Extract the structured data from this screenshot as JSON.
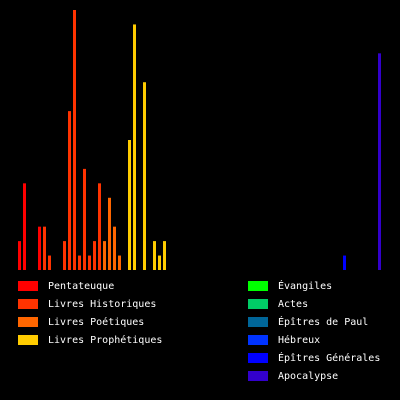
{
  "chart_data": {
    "type": "bar",
    "ylim": [
      0,
      18
    ],
    "series": [
      {
        "name": "Pentateuque",
        "color": "#ff0000",
        "values": [
          2,
          6,
          0,
          0,
          3,
          null,
          null,
          null,
          null,
          null,
          null,
          null,
          null,
          null,
          null,
          null,
          null,
          null,
          null,
          null,
          null,
          null,
          null,
          null,
          null,
          null,
          null,
          null,
          null,
          null,
          null,
          null,
          null,
          null,
          null,
          null,
          null,
          null,
          null,
          null,
          null,
          null,
          null,
          null,
          null,
          null,
          null,
          null,
          null,
          null,
          null,
          null,
          null,
          null,
          null,
          null,
          null,
          null,
          null,
          null,
          null,
          null,
          null,
          null,
          null,
          null,
          null,
          null,
          null,
          null,
          null,
          null,
          null
        ]
      },
      {
        "name": "Livres Historiques",
        "color": "#ff3300",
        "values": [
          null,
          null,
          null,
          null,
          null,
          3,
          1,
          0,
          0,
          2,
          11,
          18,
          1,
          7,
          1,
          2,
          6,
          null,
          null,
          null,
          null,
          null,
          null,
          null,
          null,
          null,
          null,
          null,
          null,
          null,
          null,
          null,
          null,
          null,
          null,
          null,
          null,
          null,
          null,
          null,
          null,
          null,
          null,
          null,
          null,
          null,
          null,
          null,
          null,
          null,
          null,
          null,
          null,
          null,
          null,
          null,
          null,
          null,
          null,
          null,
          null,
          null,
          null,
          null,
          null,
          null,
          null,
          null,
          null,
          null,
          null,
          null,
          null
        ]
      },
      {
        "name": "Livres Poétiques",
        "color": "#ff6600",
        "values": [
          null,
          null,
          null,
          null,
          null,
          null,
          null,
          null,
          null,
          null,
          null,
          null,
          null,
          null,
          null,
          null,
          null,
          2,
          5,
          3,
          1,
          0,
          null,
          null,
          null,
          null,
          null,
          null,
          null,
          null,
          null,
          null,
          null,
          null,
          null,
          null,
          null,
          null,
          null,
          null,
          null,
          null,
          null,
          null,
          null,
          null,
          null,
          null,
          null,
          null,
          null,
          null,
          null,
          null,
          null,
          null,
          null,
          null,
          null,
          null,
          null,
          null,
          null,
          null,
          null,
          null,
          null,
          null,
          null,
          null,
          null,
          null,
          null
        ]
      },
      {
        "name": "Livres Prophétiques",
        "color": "#ffcc00",
        "values": [
          null,
          null,
          null,
          null,
          null,
          null,
          null,
          null,
          null,
          null,
          null,
          null,
          null,
          null,
          null,
          null,
          null,
          null,
          null,
          null,
          null,
          null,
          9,
          17,
          0,
          13,
          0,
          2,
          1,
          2,
          0,
          0,
          0,
          0,
          0,
          0,
          0,
          0,
          0,
          0,
          0,
          0,
          0,
          0,
          0,
          0,
          null,
          null,
          null,
          null,
          null,
          null,
          null,
          null,
          null,
          null,
          null,
          null,
          null,
          null,
          null,
          null,
          null,
          null,
          null,
          null,
          null,
          null,
          null,
          null,
          null,
          null,
          null
        ]
      },
      {
        "name": "Évangiles",
        "color": "#00ff00",
        "values": [
          null,
          null,
          null,
          null,
          null,
          null,
          null,
          null,
          null,
          null,
          null,
          null,
          null,
          null,
          null,
          null,
          null,
          null,
          null,
          null,
          null,
          null,
          null,
          null,
          null,
          null,
          null,
          null,
          null,
          null,
          null,
          null,
          null,
          null,
          null,
          null,
          null,
          null,
          null,
          null,
          null,
          null,
          null,
          null,
          null,
          null,
          0,
          0,
          0,
          0,
          null,
          null,
          null,
          null,
          null,
          null,
          null,
          null,
          null,
          null,
          null,
          null,
          null,
          null,
          null,
          null,
          null,
          null,
          null,
          null,
          null,
          null,
          null
        ]
      },
      {
        "name": "Actes",
        "color": "#00cc66",
        "values": [
          null,
          null,
          null,
          null,
          null,
          null,
          null,
          null,
          null,
          null,
          null,
          null,
          null,
          null,
          null,
          null,
          null,
          null,
          null,
          null,
          null,
          null,
          null,
          null,
          null,
          null,
          null,
          null,
          null,
          null,
          null,
          null,
          null,
          null,
          null,
          null,
          null,
          null,
          null,
          null,
          null,
          null,
          null,
          null,
          null,
          null,
          null,
          null,
          null,
          null,
          0,
          null,
          null,
          null,
          null,
          null,
          null,
          null,
          null,
          null,
          null,
          null,
          null,
          null,
          null,
          null,
          null,
          null,
          null,
          null,
          null,
          null,
          null
        ]
      },
      {
        "name": "Épîtres de Paul",
        "color": "#006699",
        "values": [
          null,
          null,
          null,
          null,
          null,
          null,
          null,
          null,
          null,
          null,
          null,
          null,
          null,
          null,
          null,
          null,
          null,
          null,
          null,
          null,
          null,
          null,
          null,
          null,
          null,
          null,
          null,
          null,
          null,
          null,
          null,
          null,
          null,
          null,
          null,
          null,
          null,
          null,
          null,
          null,
          null,
          null,
          null,
          null,
          null,
          null,
          null,
          null,
          null,
          null,
          null,
          0,
          0,
          0,
          0,
          0,
          0,
          0,
          0,
          0,
          0,
          0,
          0,
          0,
          null,
          null,
          null,
          null,
          null,
          null,
          null,
          null,
          null
        ]
      },
      {
        "name": "Hébreux",
        "color": "#0033ff",
        "values": [
          null,
          null,
          null,
          null,
          null,
          null,
          null,
          null,
          null,
          null,
          null,
          null,
          null,
          null,
          null,
          null,
          null,
          null,
          null,
          null,
          null,
          null,
          null,
          null,
          null,
          null,
          null,
          null,
          null,
          null,
          null,
          null,
          null,
          null,
          null,
          null,
          null,
          null,
          null,
          null,
          null,
          null,
          null,
          null,
          null,
          null,
          null,
          null,
          null,
          null,
          null,
          null,
          null,
          null,
          null,
          null,
          null,
          null,
          null,
          null,
          null,
          null,
          null,
          null,
          0,
          null,
          null,
          null,
          null,
          null,
          null,
          null,
          null
        ]
      },
      {
        "name": "Épîtres Générales",
        "color": "#0000ff",
        "values": [
          null,
          null,
          null,
          null,
          null,
          null,
          null,
          null,
          null,
          null,
          null,
          null,
          null,
          null,
          null,
          null,
          null,
          null,
          null,
          null,
          null,
          null,
          null,
          null,
          null,
          null,
          null,
          null,
          null,
          null,
          null,
          null,
          null,
          null,
          null,
          null,
          null,
          null,
          null,
          null,
          null,
          null,
          null,
          null,
          null,
          null,
          null,
          null,
          null,
          null,
          null,
          null,
          null,
          null,
          null,
          null,
          null,
          null,
          null,
          null,
          null,
          null,
          null,
          null,
          null,
          1,
          0,
          0,
          0,
          0,
          0,
          0,
          null
        ]
      },
      {
        "name": "Apocalypse",
        "color": "#3300cc",
        "values": [
          null,
          null,
          null,
          null,
          null,
          null,
          null,
          null,
          null,
          null,
          null,
          null,
          null,
          null,
          null,
          null,
          null,
          null,
          null,
          null,
          null,
          null,
          null,
          null,
          null,
          null,
          null,
          null,
          null,
          null,
          null,
          null,
          null,
          null,
          null,
          null,
          null,
          null,
          null,
          null,
          null,
          null,
          null,
          null,
          null,
          null,
          null,
          null,
          null,
          null,
          null,
          null,
          null,
          null,
          null,
          null,
          null,
          null,
          null,
          null,
          null,
          null,
          null,
          null,
          null,
          null,
          null,
          null,
          null,
          null,
          null,
          null,
          15
        ]
      }
    ]
  }
}
